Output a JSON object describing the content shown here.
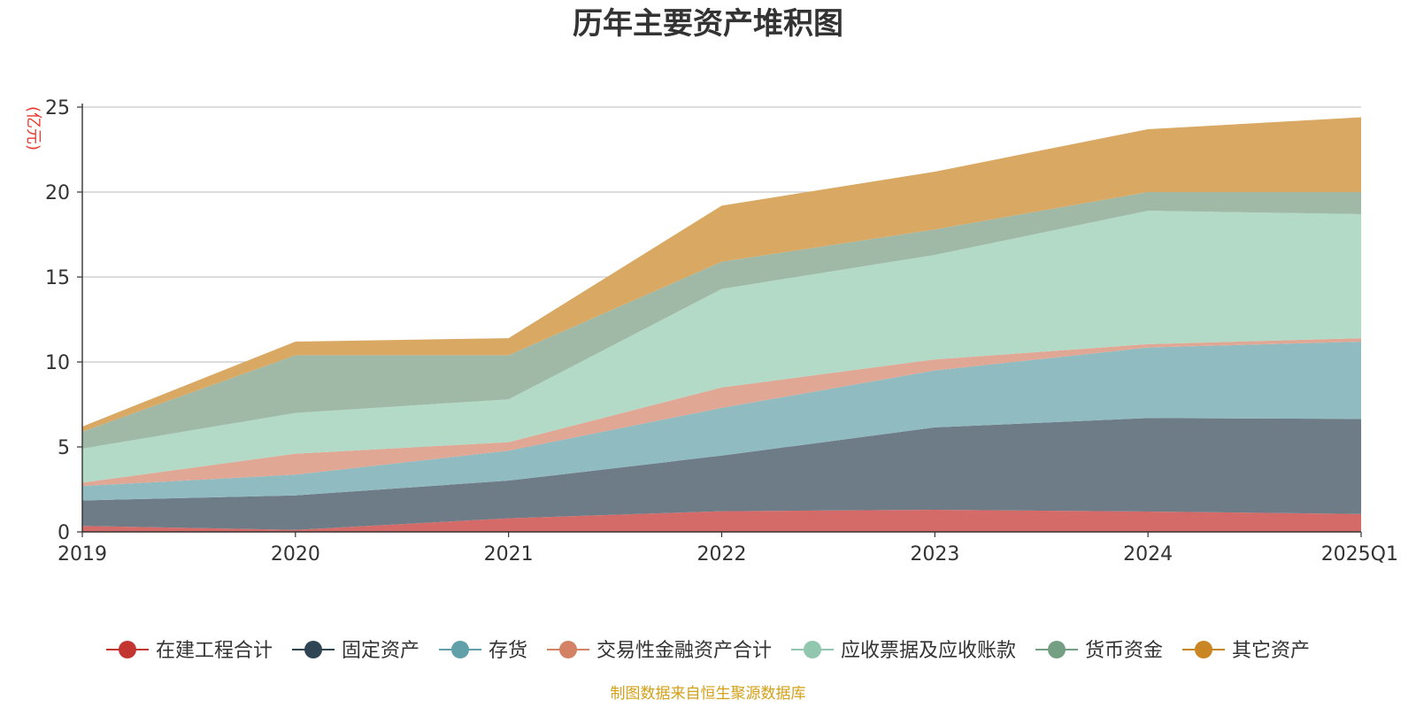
{
  "chart_data": {
    "type": "area",
    "stacked": true,
    "title": "历年主要资产堆积图",
    "unit_label": "(亿元)",
    "source": "制图数据来自恒生聚源数据库",
    "categories": [
      "2019",
      "2020",
      "2021",
      "2022",
      "2023",
      "2024",
      "2025Q1"
    ],
    "ylim": [
      0,
      25
    ],
    "yticks": [
      0,
      5,
      10,
      15,
      20,
      25
    ],
    "grid": true,
    "legend_position": "bottom",
    "series": [
      {
        "name": "在建工程合计",
        "color": "#c23531",
        "fill": "#d56b68",
        "values": [
          0.35,
          0.12,
          0.8,
          1.22,
          1.3,
          1.2,
          1.05
        ]
      },
      {
        "name": "固定资产",
        "color": "#2f4554",
        "fill": "#6e7c87",
        "values": [
          1.5,
          2.03,
          2.22,
          3.27,
          4.85,
          5.5,
          5.6
        ]
      },
      {
        "name": "存货",
        "color": "#61a0a8",
        "fill": "#90bbc1",
        "values": [
          0.85,
          1.22,
          1.76,
          2.81,
          3.35,
          4.15,
          4.55
        ]
      },
      {
        "name": "交易性金融资产合计",
        "color": "#d48265",
        "fill": "#e0a794",
        "values": [
          0.2,
          1.23,
          0.5,
          1.2,
          0.65,
          0.2,
          0.2
        ]
      },
      {
        "name": "应收票据及应收账款",
        "color": "#91c7ae",
        "fill": "#b2dac7",
        "values": [
          2.0,
          2.4,
          2.52,
          5.8,
          6.15,
          7.85,
          7.3
        ]
      },
      {
        "name": "货币资金",
        "color": "#749f83",
        "fill": "#9fb9a6",
        "values": [
          1.0,
          3.4,
          2.6,
          1.6,
          1.5,
          1.1,
          1.3
        ]
      },
      {
        "name": "其它资产",
        "color": "#ca8622",
        "fill": "#d9a863",
        "values": [
          0.3,
          0.8,
          1.0,
          3.3,
          3.4,
          3.7,
          4.4
        ]
      }
    ]
  }
}
